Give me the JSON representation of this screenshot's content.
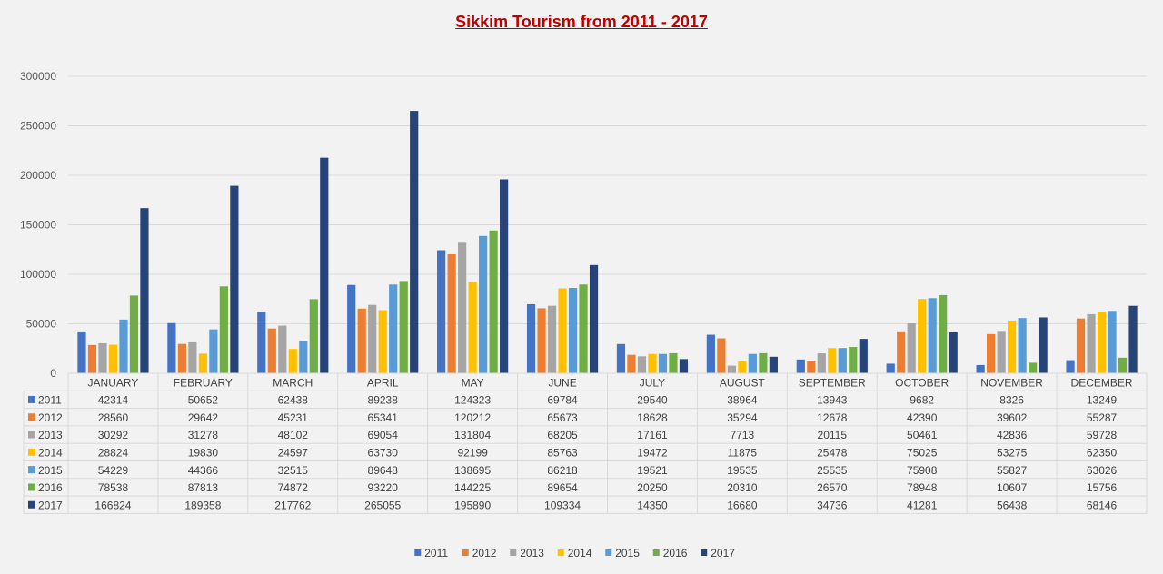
{
  "chart_data": {
    "type": "bar",
    "title": "Sikkim Tourism from 2011 - 2017",
    "categories": [
      "JANUARY",
      "FEBRUARY",
      "MARCH",
      "APRIL",
      "MAY",
      "JUNE",
      "JULY",
      "AUGUST",
      "SEPTEMBER",
      "OCTOBER",
      "NOVEMBER",
      "DECEMBER"
    ],
    "ylim": [
      0,
      300000
    ],
    "yticks": [
      0,
      50000,
      100000,
      150000,
      200000,
      250000,
      300000
    ],
    "ytick_labels": [
      "0",
      "50000",
      "100000",
      "150000",
      "200000",
      "250000",
      "300000"
    ],
    "grid": true,
    "legend": "bottom",
    "data_table": true,
    "series": [
      {
        "name": "2011",
        "color": "#4472c4",
        "values": [
          42314,
          50652,
          62438,
          89238,
          124323,
          69784,
          29540,
          38964,
          13943,
          9682,
          8326,
          13249
        ]
      },
      {
        "name": "2012",
        "color": "#ed7d31",
        "values": [
          28560,
          29642,
          45231,
          65341,
          120212,
          65673,
          18628,
          35294,
          12678,
          42390,
          39602,
          55287
        ]
      },
      {
        "name": "2013",
        "color": "#a5a5a5",
        "values": [
          30292,
          31278,
          48102,
          69054,
          131804,
          68205,
          17161,
          7713,
          20115,
          50461,
          42836,
          59728
        ]
      },
      {
        "name": "2014",
        "color": "#ffc000",
        "values": [
          28824,
          19830,
          24597,
          63730,
          92199,
          85763,
          19472,
          11875,
          25478,
          75025,
          53275,
          62350
        ]
      },
      {
        "name": "2015",
        "color": "#5b9bd5",
        "values": [
          54229,
          44366,
          32515,
          89648,
          138695,
          86218,
          19521,
          19535,
          25535,
          75908,
          55827,
          63026
        ]
      },
      {
        "name": "2016",
        "color": "#70ad47",
        "values": [
          78538,
          87813,
          74872,
          93220,
          144225,
          89654,
          20250,
          20310,
          26570,
          78948,
          10607,
          15756
        ]
      },
      {
        "name": "2017",
        "color": "#264478",
        "values": [
          166824,
          189358,
          217762,
          265055,
          195890,
          109334,
          14350,
          16680,
          34736,
          41281,
          56438,
          68146
        ]
      }
    ]
  }
}
